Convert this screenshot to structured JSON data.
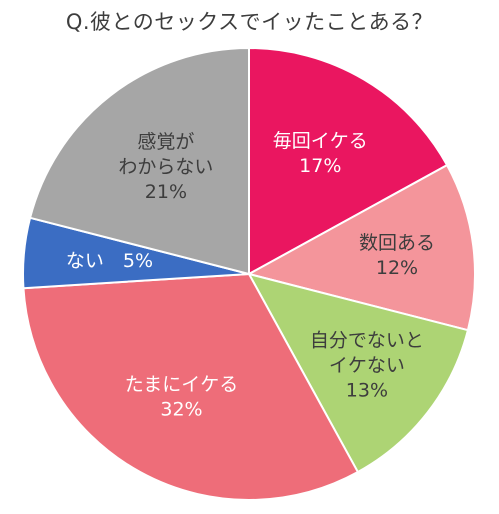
{
  "chart_data": {
    "type": "pie",
    "title": "Q.彼とのセックスでイッたことある？",
    "start_angle_deg": 0,
    "direction": "clockwise",
    "slices": [
      {
        "label_lines": [
          "毎回イケる",
          "17%"
        ],
        "value": 17,
        "color": "#EA1660",
        "text_color": "#ffffff"
      },
      {
        "label_lines": [
          "数回ある",
          "12%"
        ],
        "value": 12,
        "color": "#F4959B",
        "text_color": "#3d3d3d"
      },
      {
        "label_lines": [
          "自分でないと",
          "イケない",
          "13%"
        ],
        "value": 13,
        "color": "#ADD474",
        "text_color": "#3d3d3d"
      },
      {
        "label_lines": [
          "たまにイケる",
          "32%"
        ],
        "value": 32,
        "color": "#EE6D79",
        "text_color": "#ffffff"
      },
      {
        "label_lines": [
          "ない　5%"
        ],
        "value": 5,
        "color": "#3B6DC3",
        "text_color": "#ffffff"
      },
      {
        "label_lines": [
          "感覚が",
          "わからない",
          "21%"
        ],
        "value": 21,
        "color": "#A6A6A6",
        "text_color": "#3d3d3d"
      }
    ]
  }
}
